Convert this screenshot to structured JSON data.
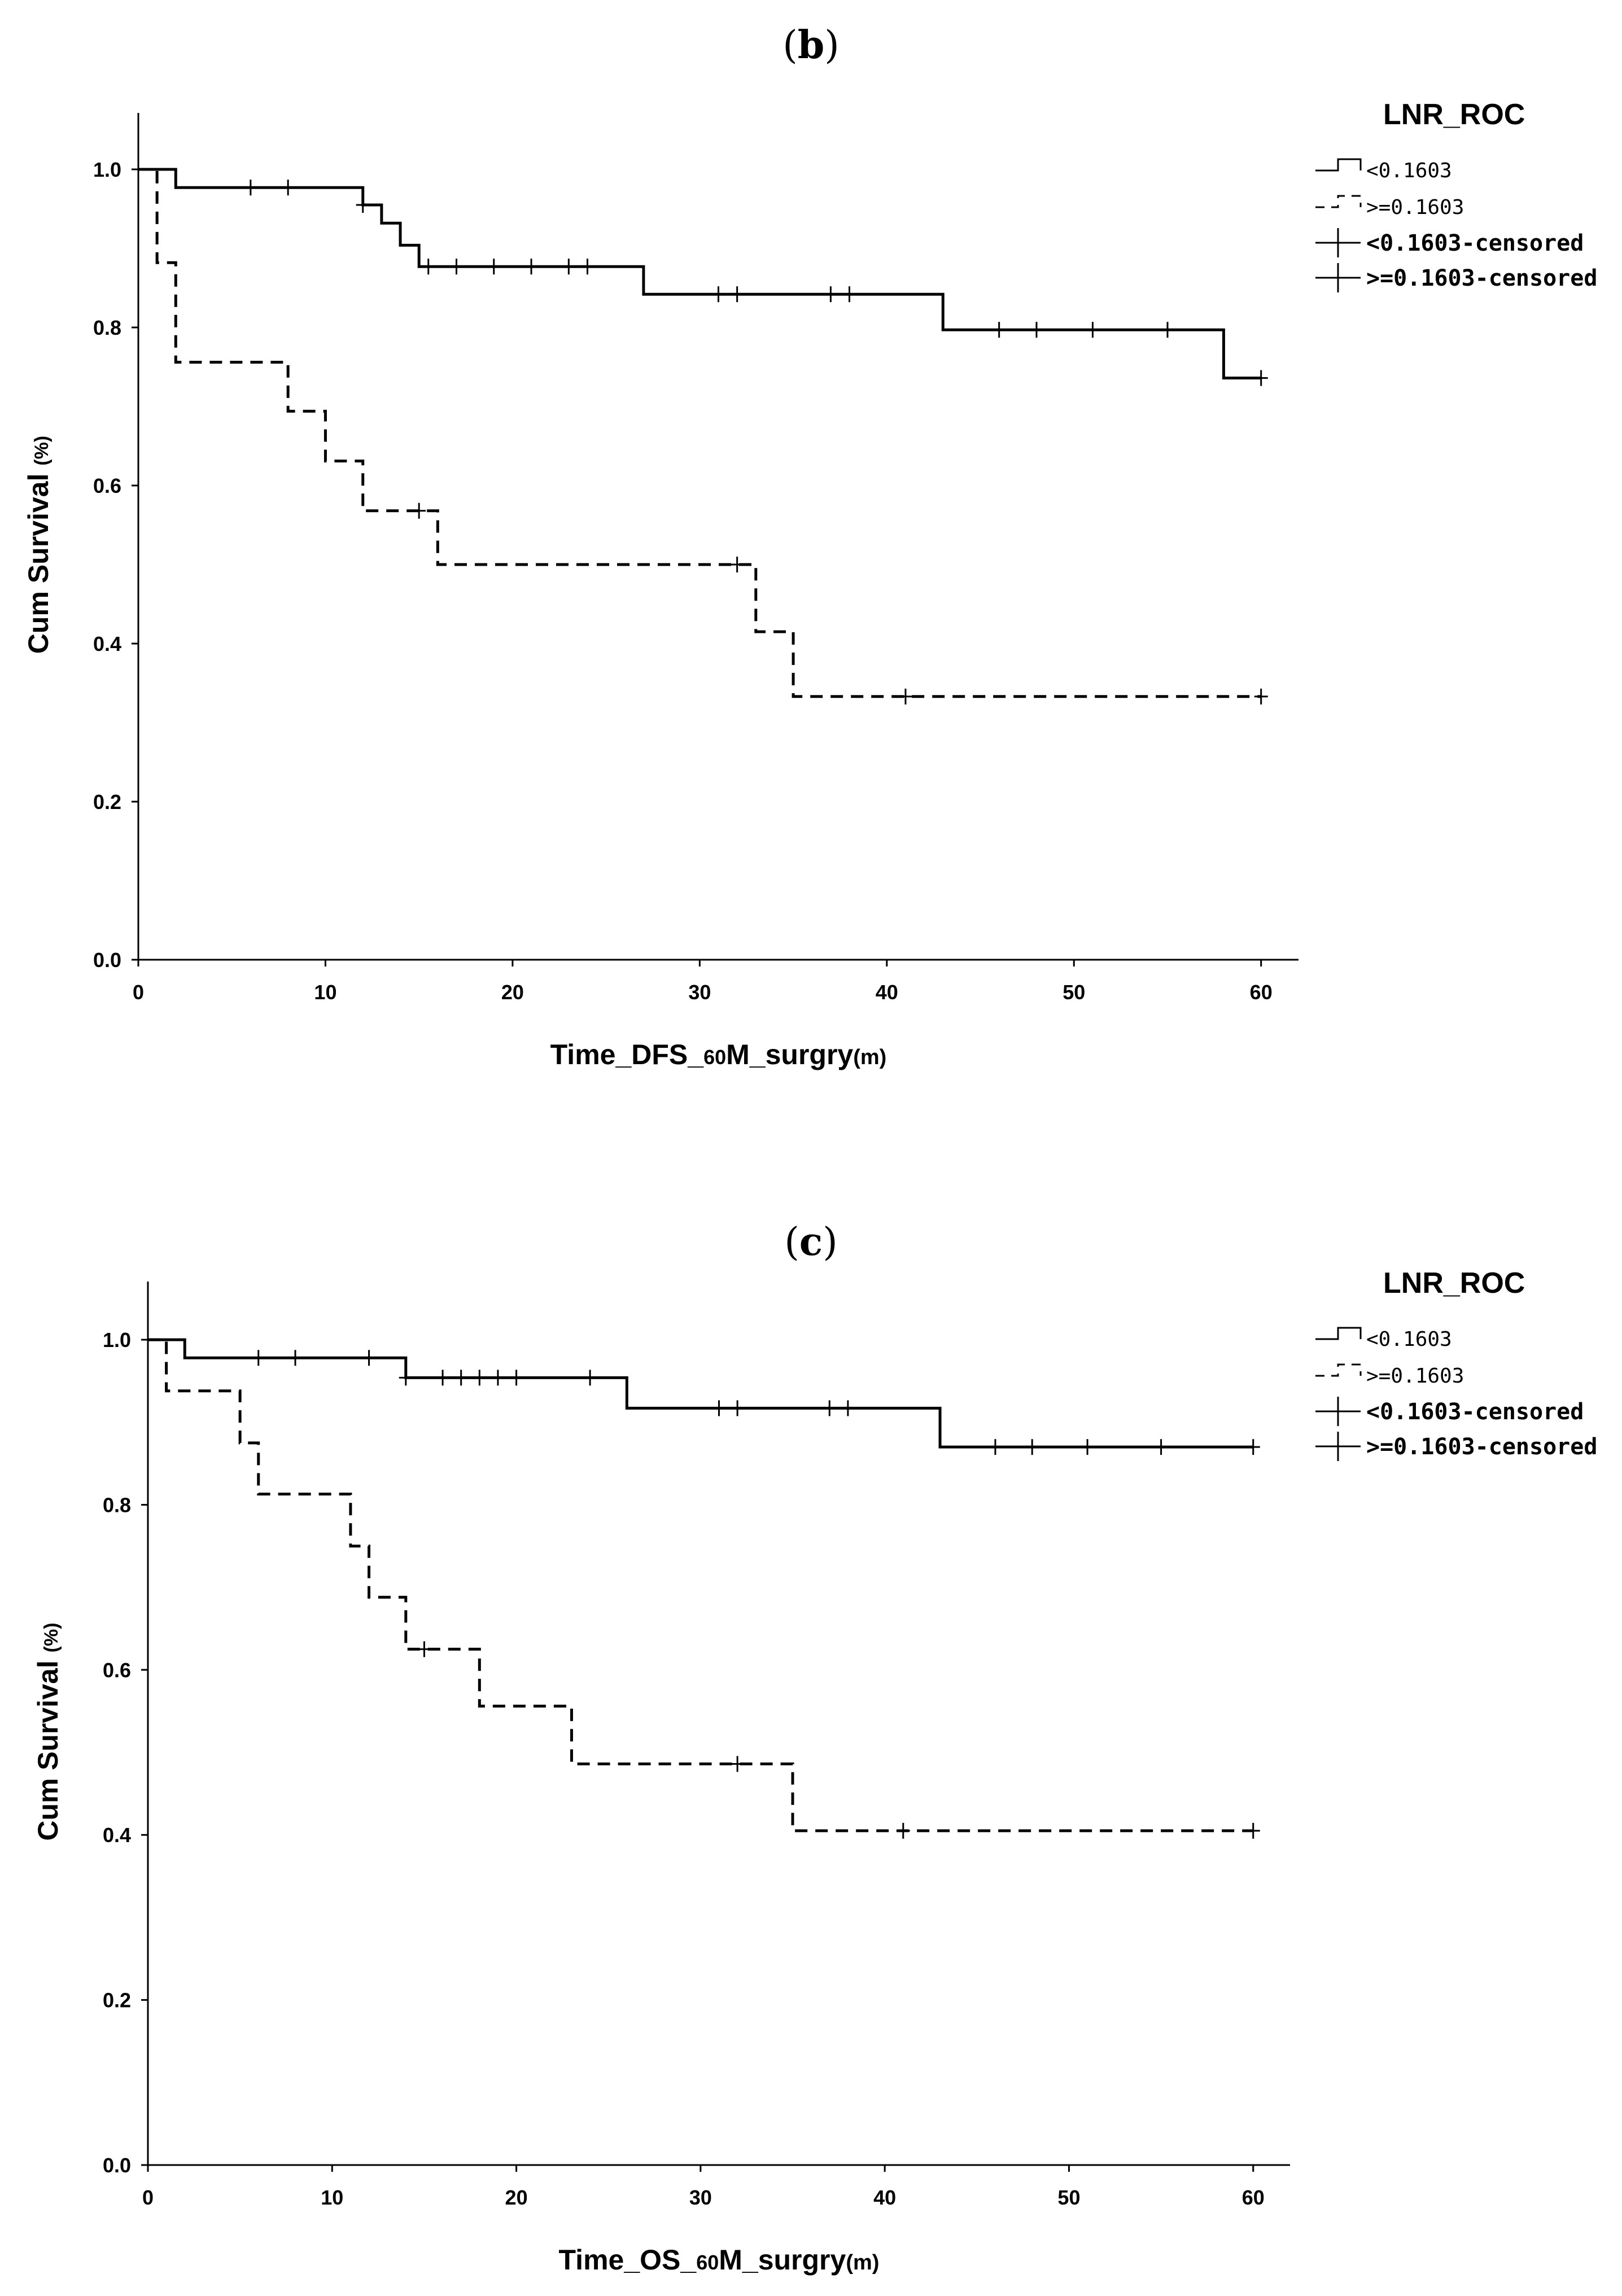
{
  "panels": [
    {
      "label_open": "(",
      "label_letter": "b",
      "label_close": ")"
    },
    {
      "label_open": "(",
      "label_letter": "c",
      "label_close": ")"
    }
  ],
  "chart_data": [
    {
      "type": "line",
      "subtype": "kaplan-meier",
      "title": "",
      "xlabel": "Time_DFS_60M_surgry(m)",
      "xlabel_main": "Time_DFS_",
      "xlabel_small": "60",
      "xlabel_rest": "M_surgry",
      "xlabel_unit": "(m)",
      "ylabel": "Cum Survival (%)",
      "ylabel_main": "Cum Survival",
      "ylabel_unit": "(%)",
      "xlim": [
        0,
        62
      ],
      "ylim": [
        0,
        1.05
      ],
      "xticks": [
        0,
        10,
        20,
        30,
        40,
        50,
        60
      ],
      "yticks": [
        "0.0",
        "0.2",
        "0.4",
        "0.6",
        "0.8",
        "1.0"
      ],
      "legend": {
        "title": "LNR_ROC",
        "position": "top-right",
        "entries": [
          "<0.1603",
          ">=0.1603",
          "<0.1603-censored",
          ">=0.1603-censored"
        ]
      },
      "series": [
        {
          "name": "<0.1603",
          "style": "solid",
          "steps": [
            [
              0,
              1.0
            ],
            [
              2,
              0.977
            ],
            [
              12,
              0.955
            ],
            [
              13,
              0.932
            ],
            [
              14,
              0.904
            ],
            [
              15,
              0.877
            ],
            [
              27,
              0.842
            ],
            [
              43,
              0.797
            ],
            [
              58,
              0.736
            ]
          ],
          "end_x": 60,
          "censored": [
            [
              6,
              0.977
            ],
            [
              8,
              0.977
            ],
            [
              12,
              0.955
            ],
            [
              15.5,
              0.877
            ],
            [
              17,
              0.877
            ],
            [
              19,
              0.877
            ],
            [
              21,
              0.877
            ],
            [
              23,
              0.877
            ],
            [
              24,
              0.877
            ],
            [
              31,
              0.842
            ],
            [
              32,
              0.842
            ],
            [
              37,
              0.842
            ],
            [
              38,
              0.842
            ],
            [
              46,
              0.797
            ],
            [
              48,
              0.797
            ],
            [
              51,
              0.797
            ],
            [
              55,
              0.797
            ],
            [
              60,
              0.736
            ]
          ]
        },
        {
          "name": ">=0.1603",
          "style": "dashed",
          "steps": [
            [
              0,
              1.0
            ],
            [
              1,
              0.882
            ],
            [
              2,
              0.756
            ],
            [
              8,
              0.694
            ],
            [
              10,
              0.631
            ],
            [
              12,
              0.568
            ],
            [
              16,
              0.5
            ],
            [
              33,
              0.415
            ],
            [
              35,
              0.333
            ]
          ],
          "end_x": 60,
          "censored": [
            [
              15,
              0.568
            ],
            [
              32,
              0.5
            ],
            [
              41,
              0.333
            ],
            [
              60,
              0.333
            ]
          ]
        }
      ]
    },
    {
      "type": "line",
      "subtype": "kaplan-meier",
      "title": "",
      "xlabel": "Time_OS_60M_surgry(m)",
      "xlabel_main": "Time_OS_",
      "xlabel_small": "60",
      "xlabel_rest": "M_surgry",
      "xlabel_unit": "(m)",
      "ylabel": "Cum Survival (%)",
      "ylabel_main": "Cum Survival",
      "ylabel_unit": "(%)",
      "xlim": [
        0,
        62
      ],
      "ylim": [
        0,
        1.05
      ],
      "xticks": [
        0,
        10,
        20,
        30,
        40,
        50,
        60
      ],
      "yticks": [
        "0.0",
        "0.2",
        "0.4",
        "0.6",
        "0.8",
        "1.0"
      ],
      "legend": {
        "title": "LNR_ROC",
        "position": "top-right",
        "entries": [
          "<0.1603",
          ">=0.1603",
          "<0.1603-censored",
          ">=0.1603-censored"
        ]
      },
      "series": [
        {
          "name": "<0.1603",
          "style": "solid",
          "steps": [
            [
              0,
              1.0
            ],
            [
              2,
              0.978
            ],
            [
              14,
              0.954
            ],
            [
              26,
              0.917
            ],
            [
              43,
              0.87
            ]
          ],
          "end_x": 60,
          "censored": [
            [
              6,
              0.978
            ],
            [
              8,
              0.978
            ],
            [
              12,
              0.978
            ],
            [
              14,
              0.954
            ],
            [
              16,
              0.954
            ],
            [
              17,
              0.954
            ],
            [
              18,
              0.954
            ],
            [
              19,
              0.954
            ],
            [
              20,
              0.954
            ],
            [
              24,
              0.954
            ],
            [
              31,
              0.917
            ],
            [
              32,
              0.917
            ],
            [
              37,
              0.917
            ],
            [
              38,
              0.917
            ],
            [
              46,
              0.87
            ],
            [
              48,
              0.87
            ],
            [
              51,
              0.87
            ],
            [
              55,
              0.87
            ],
            [
              60,
              0.87
            ]
          ]
        },
        {
          "name": ">=0.1603",
          "style": "dashed",
          "steps": [
            [
              0,
              1.0
            ],
            [
              1,
              0.938
            ],
            [
              5,
              0.875
            ],
            [
              6,
              0.813
            ],
            [
              11,
              0.75
            ],
            [
              12,
              0.688
            ],
            [
              14,
              0.625
            ],
            [
              18,
              0.556
            ],
            [
              23,
              0.486
            ],
            [
              35,
              0.405
            ]
          ],
          "end_x": 60,
          "censored": [
            [
              15,
              0.625
            ],
            [
              32,
              0.486
            ],
            [
              41,
              0.405
            ],
            [
              60,
              0.405
            ]
          ]
        }
      ]
    }
  ]
}
